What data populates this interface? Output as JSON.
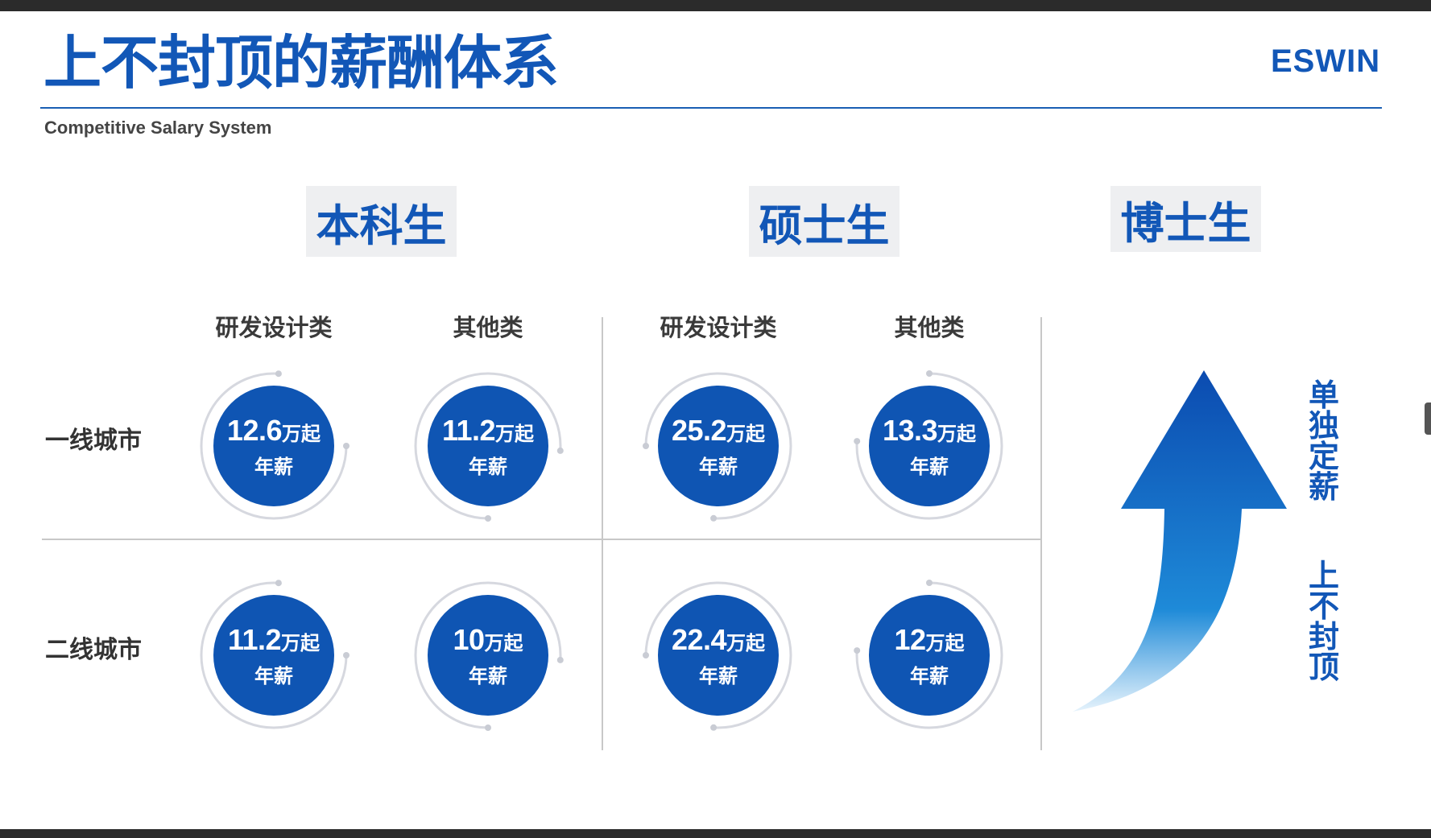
{
  "title": "上不封顶的薪酬体系",
  "subtitle": "Competitive Salary System",
  "logo": "ESWIN",
  "degrees": [
    "本科生",
    "硕士生",
    "博士生"
  ],
  "categories": [
    "研发设计类",
    "其他类",
    "研发设计类",
    "其他类"
  ],
  "rows": [
    "一线城市",
    "二线城市"
  ],
  "salaries": [
    [
      {
        "num": "12.6",
        "unit": "万起",
        "label": "年薪"
      },
      {
        "num": "11.2",
        "unit": "万起",
        "label": "年薪"
      },
      {
        "num": "25.2",
        "unit": "万起",
        "label": "年薪"
      },
      {
        "num": "13.3",
        "unit": "万起",
        "label": "年薪"
      }
    ],
    [
      {
        "num": "11.2",
        "unit": "万起",
        "label": "年薪"
      },
      {
        "num": "10",
        "unit": "万起",
        "label": "年薪"
      },
      {
        "num": "22.4",
        "unit": "万起",
        "label": "年薪"
      },
      {
        "num": "12",
        "unit": "万起",
        "label": "年薪"
      }
    ]
  ],
  "phd_text_1": "单独定薪",
  "phd_text_2": "上不封顶",
  "colors": {
    "brand": "#1257b7",
    "circle": "#0f55b3",
    "label_bg": "#eeeff1"
  }
}
